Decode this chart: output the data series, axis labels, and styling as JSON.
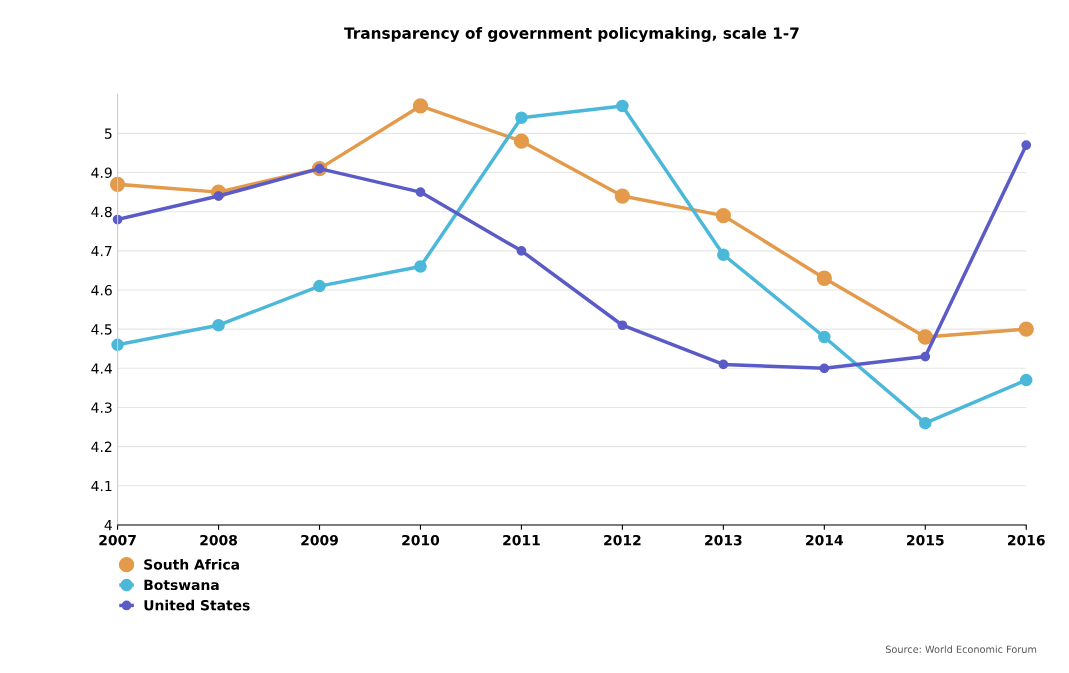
{
  "chart_data": {
    "type": "line",
    "title": "Transparency of government policymaking, scale 1-7",
    "x": [
      2007,
      2008,
      2009,
      2010,
      2011,
      2012,
      2013,
      2014,
      2015,
      2016
    ],
    "series": [
      {
        "name": "South Africa",
        "color": "#e39a4a",
        "values": [
          4.87,
          4.85,
          4.91,
          5.07,
          4.98,
          4.84,
          4.79,
          4.63,
          4.48,
          4.5
        ]
      },
      {
        "name": "Botswana",
        "color": "#4bb8d9",
        "values": [
          4.46,
          4.51,
          4.61,
          4.66,
          5.04,
          5.07,
          4.69,
          4.48,
          4.26,
          4.37
        ]
      },
      {
        "name": "United States",
        "color": "#5b5bc8",
        "values": [
          4.78,
          4.84,
          4.91,
          4.85,
          4.7,
          4.51,
          4.41,
          4.4,
          4.43,
          4.97
        ]
      }
    ],
    "xlim": [
      2007,
      2016
    ],
    "xticks": [
      2007,
      2008,
      2009,
      2010,
      2011,
      2012,
      2013,
      2014,
      2015,
      2016
    ],
    "ylim": [
      4,
      5.1
    ],
    "yticks": [
      4,
      4.1,
      4.2,
      4.3,
      4.4,
      4.5,
      4.6,
      4.7,
      4.8,
      4.9,
      5
    ],
    "grid": "y",
    "legend": "bottom left",
    "marker": "circle",
    "line_style": "solid",
    "annotations": [
      "Source: World Economic Forum"
    ]
  }
}
